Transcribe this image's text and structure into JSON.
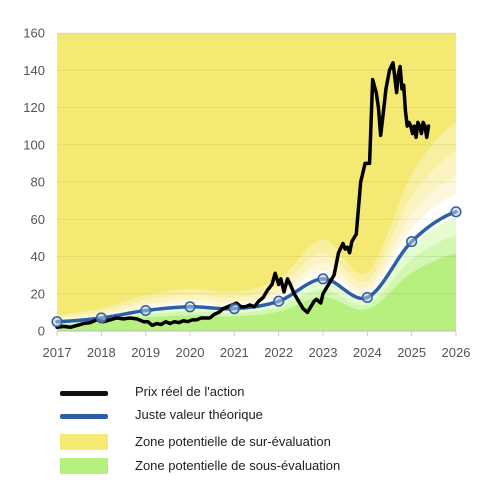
{
  "chart_data": {
    "type": "line",
    "x_ticks": [
      "2017",
      "2018",
      "2019",
      "2020",
      "2021",
      "2022",
      "2023",
      "2024",
      "2025",
      "2026"
    ],
    "y_ticks": [
      "0",
      "20",
      "40",
      "60",
      "80",
      "100",
      "120",
      "140",
      "160"
    ],
    "xlim": [
      2017,
      2026
    ],
    "ylim": [
      0,
      160
    ],
    "grid": true,
    "legend_position": "bottom",
    "series": [
      {
        "name": "Prix réel de l'action",
        "color": "#000000",
        "x": [
          2017.0,
          2017.15,
          2017.3,
          2017.45,
          2017.6,
          2017.75,
          2017.9,
          2018.05,
          2018.2,
          2018.35,
          2018.5,
          2018.65,
          2018.8,
          2018.95,
          2019.05,
          2019.15,
          2019.25,
          2019.35,
          2019.45,
          2019.55,
          2019.65,
          2019.75,
          2019.85,
          2019.95,
          2020.05,
          2020.15,
          2020.25,
          2020.35,
          2020.45,
          2020.55,
          2020.65,
          2020.75,
          2020.85,
          2020.95,
          2021.05,
          2021.15,
          2021.25,
          2021.35,
          2021.45,
          2021.55,
          2021.65,
          2021.75,
          2021.85,
          2021.92,
          2022.0,
          2022.05,
          2022.12,
          2022.2,
          2022.28,
          2022.35,
          2022.45,
          2022.55,
          2022.65,
          2022.75,
          2022.8,
          2022.85,
          2022.95,
          2023.0,
          2023.05,
          2023.15,
          2023.25,
          2023.35,
          2023.45,
          2023.5,
          2023.55,
          2023.6,
          2023.65,
          2023.7,
          2023.75,
          2023.85,
          2023.95,
          2024.05,
          2024.12,
          2024.2,
          2024.25,
          2024.3,
          2024.35,
          2024.42,
          2024.5,
          2024.58,
          2024.62,
          2024.66,
          2024.7,
          2024.74,
          2024.78,
          2024.82,
          2024.86,
          2024.9,
          2024.94,
          2024.98,
          2025.02,
          2025.06,
          2025.1,
          2025.14,
          2025.18,
          2025.22,
          2025.26,
          2025.3,
          2025.34,
          2025.38
        ],
        "y": [
          2,
          2.5,
          2,
          3,
          4,
          4.5,
          6,
          5,
          6,
          7,
          6.5,
          7,
          6.5,
          5,
          5,
          3,
          4,
          3.5,
          5,
          4,
          5,
          4.5,
          5.5,
          5,
          6,
          6,
          7,
          7,
          7,
          9,
          10,
          12,
          13,
          14,
          15,
          13,
          13,
          14,
          13,
          16,
          18,
          22,
          25,
          31,
          25,
          28,
          21,
          28,
          24,
          20,
          16,
          12,
          10,
          14,
          16,
          17,
          15,
          20,
          22,
          26,
          30,
          42,
          47,
          44,
          45,
          42,
          48,
          50,
          52,
          80,
          90,
          90,
          135,
          128,
          120,
          105,
          115,
          130,
          140,
          144,
          136,
          128,
          138,
          142,
          130,
          132,
          118,
          110,
          112,
          110,
          106,
          110,
          104,
          112,
          110,
          106,
          112,
          110,
          104,
          110
        ]
      },
      {
        "name": "Juste valeur théorique",
        "color": "#2d5fa6",
        "x": [
          2017,
          2018,
          2019,
          2020,
          2021,
          2022,
          2023,
          2024,
          2025,
          2026
        ],
        "y": [
          5,
          7,
          11,
          13,
          12,
          16,
          28,
          18,
          48,
          64
        ]
      },
      {
        "name": "Zone potentielle de sur-évaluation",
        "color": "#f4ea73",
        "y_upper": 160
      },
      {
        "name": "Zone potentielle de sous-évaluation",
        "color": "#b8f07f",
        "y_lower": 0
      }
    ]
  },
  "legend": [
    {
      "label": "Prix réel de l'action",
      "color": "#111111",
      "kind": "line"
    },
    {
      "label": "Juste valeur théorique",
      "color": "#2d5fa6",
      "kind": "line"
    },
    {
      "label": "Zone potentielle de sur-évaluation",
      "color": "#f4ea73",
      "kind": "area"
    },
    {
      "label": "Zone potentielle de sous-évaluation",
      "color": "#b8f07f",
      "kind": "area"
    }
  ]
}
